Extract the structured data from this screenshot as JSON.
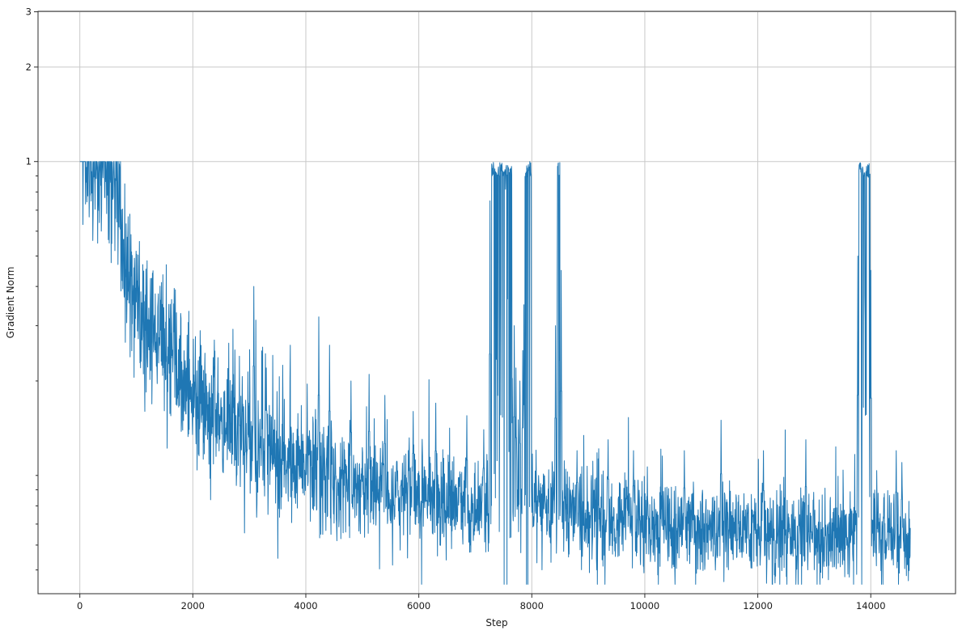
{
  "chart_data": {
    "type": "line",
    "title": "",
    "xlabel": "Step",
    "ylabel": "Gradient Norm",
    "x_ticks": [
      0,
      2000,
      4000,
      6000,
      8000,
      10000,
      12000,
      14000
    ],
    "x_tick_labels": [
      "0",
      "2000",
      "4000",
      "6000",
      "8000",
      "10000",
      "12000",
      "14000"
    ],
    "y_ticks": [
      1,
      2,
      3
    ],
    "y_tick_labels": [
      "1",
      "2",
      "3"
    ],
    "y_minor_ticks": [
      0.05,
      0.06,
      0.07,
      0.08,
      0.09,
      0.1,
      0.2,
      0.3,
      0.4,
      0.5,
      0.6,
      0.7,
      0.8,
      0.9
    ],
    "y_scale": "log",
    "xlim": [
      -740,
      15500
    ],
    "ylim": [
      0.042,
      3.01
    ],
    "grid": true,
    "legend": "none",
    "line_color": "#1f77b4",
    "grid_color": "#c9c9c9",
    "spine_color": "#2b2b2b",
    "text_color": "#1a1a1a",
    "clip_max": 1.0,
    "x_range": [
      0,
      14700
    ],
    "sample_step": 5,
    "series": [
      {
        "name": "gradient_norm",
        "description": "Noisy gradient-norm curve, clipped at 1.0; starts pegged at 1.0, decays to ~0.065 with spike bursts back to 1.0",
        "trend": [
          [
            0,
            1.0
          ],
          [
            650,
            1.0
          ],
          [
            730,
            0.52
          ],
          [
            900,
            0.4
          ],
          [
            1100,
            0.33
          ],
          [
            1400,
            0.27
          ],
          [
            1700,
            0.22
          ],
          [
            2000,
            0.185
          ],
          [
            2400,
            0.155
          ],
          [
            2800,
            0.135
          ],
          [
            3200,
            0.12
          ],
          [
            3600,
            0.112
          ],
          [
            4000,
            0.105
          ],
          [
            4500,
            0.098
          ],
          [
            5000,
            0.092
          ],
          [
            5500,
            0.088
          ],
          [
            6000,
            0.086
          ],
          [
            6500,
            0.083
          ],
          [
            7000,
            0.08
          ],
          [
            7600,
            0.078
          ],
          [
            8000,
            0.082
          ],
          [
            8300,
            0.078
          ],
          [
            9000,
            0.074
          ],
          [
            10000,
            0.071
          ],
          [
            11000,
            0.069
          ],
          [
            12000,
            0.067
          ],
          [
            13000,
            0.065
          ],
          [
            13700,
            0.064
          ],
          [
            14050,
            0.07
          ],
          [
            14400,
            0.066
          ],
          [
            14700,
            0.062
          ]
        ],
        "noise_sigma_decades": [
          [
            0,
            0.12
          ],
          [
            700,
            0.13
          ],
          [
            1500,
            0.11
          ],
          [
            3000,
            0.1
          ],
          [
            5000,
            0.085
          ],
          [
            7000,
            0.08
          ],
          [
            9000,
            0.075
          ],
          [
            14700,
            0.07
          ]
        ],
        "spike_regions": [
          {
            "start": 7290,
            "end": 7660,
            "peak": 1.0,
            "density": 0.7
          },
          {
            "start": 7880,
            "end": 7990,
            "peak": 1.0,
            "density": 0.75
          },
          {
            "start": 8450,
            "end": 8495,
            "peak": 1.0,
            "density": 0.65
          },
          {
            "start": 13790,
            "end": 13985,
            "peak": 1.0,
            "density": 0.75
          }
        ],
        "isolated_spikes": [
          [
            2380,
            0.27
          ],
          [
            3080,
            0.4
          ],
          [
            3300,
            0.22
          ],
          [
            4230,
            0.32
          ],
          [
            4420,
            0.26
          ],
          [
            4800,
            0.2
          ],
          [
            5120,
            0.21
          ],
          [
            5400,
            0.18
          ],
          [
            5900,
            0.16
          ],
          [
            6300,
            0.17
          ],
          [
            6850,
            0.155
          ],
          [
            7150,
            0.14
          ],
          [
            7260,
            0.75
          ],
          [
            7690,
            0.3
          ],
          [
            7720,
            0.22
          ],
          [
            7790,
            0.2
          ],
          [
            7840,
            0.25
          ],
          [
            7860,
            0.35
          ],
          [
            8420,
            0.3
          ],
          [
            8520,
            0.45
          ],
          [
            8800,
            0.12
          ],
          [
            9350,
            0.13
          ],
          [
            9800,
            0.12
          ],
          [
            10700,
            0.12
          ],
          [
            11350,
            0.15
          ],
          [
            12100,
            0.12
          ],
          [
            12850,
            0.13
          ],
          [
            13770,
            0.5
          ],
          [
            14000,
            0.45
          ],
          [
            14450,
            0.12
          ],
          [
            14550,
            0.11
          ]
        ],
        "down_spikes": [
          [
            55,
            0.63
          ],
          [
            230,
            0.56
          ],
          [
            380,
            0.6
          ],
          [
            520,
            0.55
          ],
          [
            620,
            0.52
          ],
          [
            1150,
            0.16
          ],
          [
            7750,
            0.09
          ],
          [
            8650,
            0.055
          ],
          [
            9150,
            0.05
          ],
          [
            10500,
            0.052
          ],
          [
            12300,
            0.05
          ],
          [
            13500,
            0.052
          ],
          [
            14650,
            0.052
          ]
        ],
        "clipped_flat_until_step": 90
      }
    ]
  },
  "labels": {
    "xlabel": "Step",
    "ylabel": "Gradient Norm"
  }
}
